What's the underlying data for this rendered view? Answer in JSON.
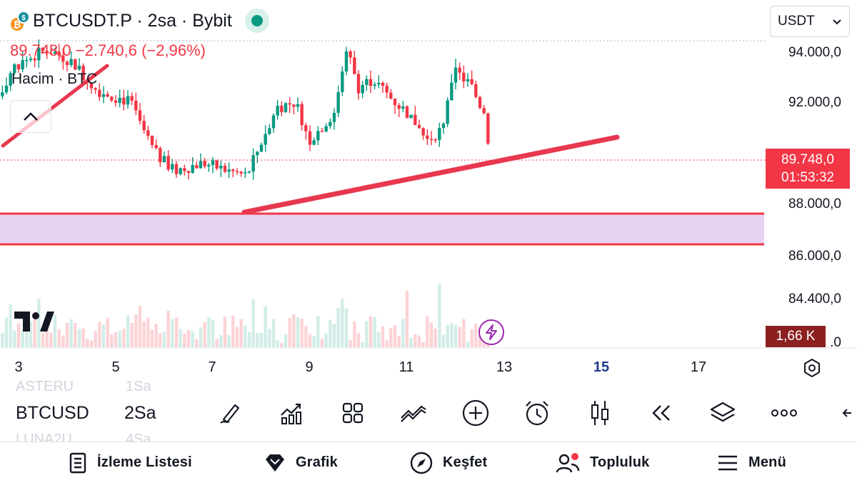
{
  "header": {
    "symbol_line": "BTCUSDT.P · 2sa · Bybit",
    "price_change_line": "89.748,0 −2.740,6 (−2,96%)",
    "volume_label": "Hacim · BTC",
    "currency_selector": "USDT"
  },
  "price_axis": {
    "labels": [
      "94.000,0",
      "92.000,0",
      "88.000,0",
      "86.000,0",
      "84.400,0",
      ".0"
    ],
    "current_price": "89.748,0",
    "countdown": "01:53:32",
    "volume_value": "1,66 K"
  },
  "time_axis": {
    "labels": [
      "3",
      "5",
      "7",
      "9",
      "11",
      "13",
      "15",
      "17"
    ],
    "bold_label": "15"
  },
  "toolbar": {
    "symbol": "BTCUSD",
    "interval": "2Sa",
    "ghost_above_symbol": "ASTERU",
    "ghost_above_interval": "1Sa",
    "ghost_below_symbol": "LUNA2U",
    "ghost_below_interval": "4Sa",
    "tools": [
      "brush-icon",
      "indicators-icon",
      "templates-icon",
      "compare-icon",
      "add-icon",
      "alert-clock-icon",
      "candles-icon",
      "replay-icon",
      "layers-icon",
      "more-icon"
    ]
  },
  "bottom_nav": {
    "watchlist": "İzleme Listesi",
    "chart": "Grafik",
    "explore": "Keşfet",
    "community": "Topluluk",
    "menu": "Menü"
  },
  "colors": {
    "up": "#089981",
    "down": "#f23645",
    "zone": "#e6d3f3",
    "trendline": "#e8384f",
    "volume_tag": "#8c2020"
  },
  "chart_data": {
    "type": "candlestick",
    "title": "BTCUSDT.P · 2sa · Bybit",
    "ylim": [
      82000,
      95000
    ],
    "x_ticks": [
      "3",
      "5",
      "7",
      "9",
      "11",
      "13",
      "15",
      "17"
    ],
    "close_path": [
      [
        2.0,
        87500
      ],
      [
        2.4,
        91600
      ],
      [
        2.9,
        93400
      ],
      [
        3.6,
        94100
      ],
      [
        4.1,
        93600
      ],
      [
        4.6,
        92500
      ],
      [
        5.3,
        92000
      ],
      [
        5.8,
        90000
      ],
      [
        6.2,
        89300
      ],
      [
        6.8,
        89600
      ],
      [
        7.3,
        89300
      ],
      [
        7.7,
        89100
      ],
      [
        8.3,
        91800
      ],
      [
        8.7,
        92000
      ],
      [
        9.0,
        90500
      ],
      [
        9.5,
        91600
      ],
      [
        9.75,
        94200
      ],
      [
        10.0,
        92600
      ],
      [
        10.3,
        92900
      ],
      [
        10.7,
        92100
      ],
      [
        11.1,
        91400
      ],
      [
        11.4,
        90500
      ],
      [
        11.7,
        90900
      ],
      [
        12.0,
        93200
      ],
      [
        12.3,
        92700
      ],
      [
        12.6,
        91500
      ],
      [
        12.72,
        89748
      ]
    ],
    "current_price": 89748,
    "volume_last": "1,66 K"
  }
}
